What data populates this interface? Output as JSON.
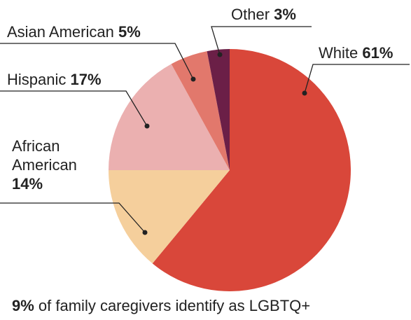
{
  "chart_data": {
    "type": "pie",
    "categories": [
      "White",
      "African American",
      "Hispanic",
      "Asian American",
      "Other"
    ],
    "values": [
      61,
      14,
      17,
      5,
      3
    ],
    "value_labels": [
      "61%",
      "14%",
      "17%",
      "5%",
      "3%"
    ],
    "colors": [
      "#d9473a",
      "#f5cf9c",
      "#ebb0b0",
      "#e2786c",
      "#6b1f47"
    ],
    "start_angle": 0,
    "direction": "clockwise",
    "annotation": {
      "highlight": "9%",
      "text": "of family caregivers identify as LGBTQ+"
    }
  }
}
